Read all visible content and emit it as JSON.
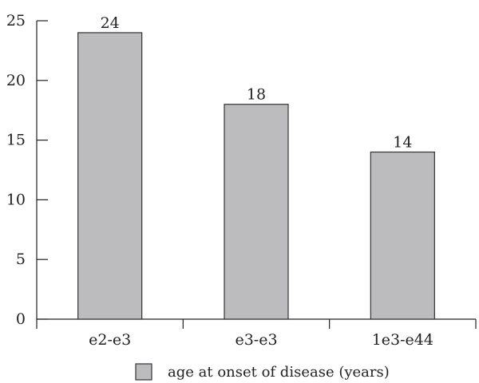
{
  "chart_data": {
    "type": "bar",
    "categories": [
      "e2-e3",
      "e3-e3",
      "1e3-e44"
    ],
    "series": [
      {
        "name": "age at onset of disease (years)",
        "values": [
          24,
          18,
          14
        ],
        "color": "#bcbcbe"
      }
    ],
    "data_labels": [
      "24",
      "18",
      "14"
    ],
    "ylim": [
      0,
      25
    ],
    "y_ticks": [
      0,
      5,
      10,
      15,
      20,
      25
    ],
    "grid": false,
    "legend_position": "bottom",
    "title": "",
    "xlabel": "",
    "ylabel": ""
  }
}
